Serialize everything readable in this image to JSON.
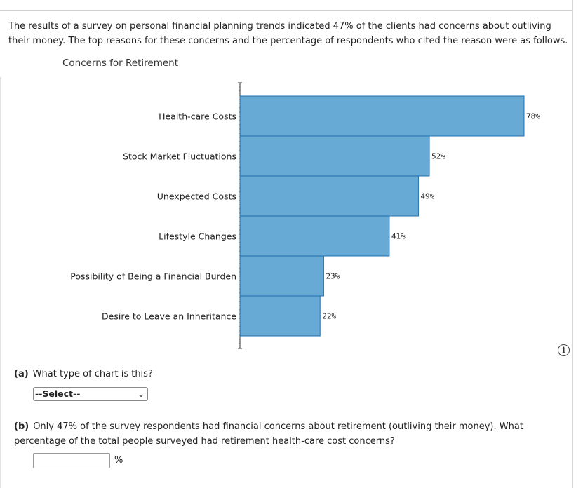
{
  "intro": "The results of a survey on personal financial planning trends indicated 47% of the clients had concerns about outliving their money. The top reasons for these concerns and the percentage of respondents who cited the reason were as follows.",
  "chart_data": {
    "type": "bar",
    "orientation": "horizontal",
    "title": "Concerns for Retirement",
    "categories": [
      "Health-care Costs",
      "Stock Market Fluctuations",
      "Unexpected Costs",
      "Lifestyle Changes",
      "Possibility of Being a Financial Burden",
      "Desire to Leave an Inheritance"
    ],
    "values": [
      78,
      52,
      49,
      41,
      23,
      22
    ],
    "value_labels": [
      "78%",
      "52%",
      "49%",
      "41%",
      "23%",
      "22%"
    ],
    "xlim": [
      0,
      78
    ],
    "xlabel": "",
    "ylabel": "",
    "grid": false,
    "bar_color": "#67aad6",
    "bar_edge_color": "#1f6fae"
  },
  "info_icon": {
    "name": "info-icon",
    "glyph": "i"
  },
  "question_a": {
    "tag": "(a)",
    "text": "What type of chart is this?",
    "select_value": "--Select--",
    "select_arrow": "⌄"
  },
  "question_b": {
    "tag": "(b)",
    "text": "Only 47% of the survey respondents had financial concerns about retirement (outliving their money). What percentage of the total people surveyed had retirement health-care cost concerns?",
    "input_value": "",
    "unit": "%"
  }
}
